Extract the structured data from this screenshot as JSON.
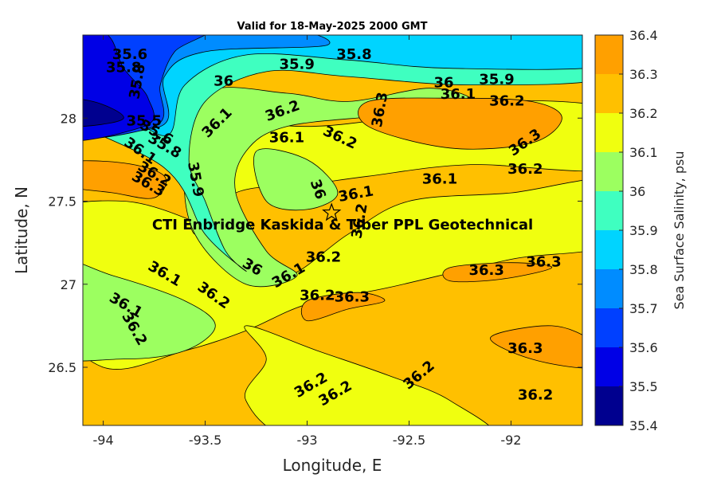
{
  "chart_data": {
    "type": "contourf",
    "title": "Valid for 18-May-2025 2000 GMT",
    "xlabel": "Longitude, E",
    "ylabel": "Latitude, N",
    "xlim": [
      -94.1,
      -91.65
    ],
    "ylim": [
      26.15,
      28.5
    ],
    "xticks": [
      -94,
      -93.5,
      -93,
      -92.5,
      -92
    ],
    "xtick_labels": [
      "-94",
      "-93.5",
      "-93",
      "-92.5",
      "-92"
    ],
    "yticks": [
      26.5,
      27,
      27.5,
      28
    ],
    "ytick_labels": [
      "26.5",
      "27",
      "27.5",
      "28"
    ],
    "grid": false,
    "colorbar": {
      "label": "Sea Surface Salinity, psu",
      "levels": [
        35.4,
        35.5,
        35.6,
        35.7,
        35.8,
        35.9,
        36.0,
        36.1,
        36.2,
        36.3,
        36.4
      ],
      "tick_labels": [
        "35.4",
        "35.5",
        "35.6",
        "35.7",
        "35.8",
        "35.9",
        "36",
        "36.1",
        "36.2",
        "36.3",
        "36.4"
      ],
      "colors": [
        "#00008f",
        "#0000e6",
        "#0040ff",
        "#008cff",
        "#00d4ff",
        "#3fffc0",
        "#9cff60",
        "#f0ff0f",
        "#ffc000",
        "#ffa000",
        "#ff5a00"
      ]
    },
    "annotation": {
      "text": "CTI Enbridge  Kaskida & Tiber PPL Geotechnical",
      "marker": "star",
      "marker_lon": -92.88,
      "marker_lat": 27.43
    },
    "contour_labels": [
      {
        "text": "35.6",
        "lon": -93.87,
        "lat": 28.38
      },
      {
        "text": "35.8",
        "lon": -93.9,
        "lat": 28.3
      },
      {
        "text": "35.8",
        "lon": -93.83,
        "lat": 28.22,
        "rot": -80
      },
      {
        "text": "35.9",
        "lon": -93.05,
        "lat": 28.32
      },
      {
        "text": "35.8",
        "lon": -92.77,
        "lat": 28.38
      },
      {
        "text": "36",
        "lon": -93.41,
        "lat": 28.22
      },
      {
        "text": "36",
        "lon": -92.33,
        "lat": 28.21
      },
      {
        "text": "35.9",
        "lon": -92.07,
        "lat": 28.23
      },
      {
        "text": "36.1",
        "lon": -92.26,
        "lat": 28.14
      },
      {
        "text": "36.2",
        "lon": -92.02,
        "lat": 28.1
      },
      {
        "text": "36.3",
        "lon": -92.64,
        "lat": 28.05,
        "rot": -80
      },
      {
        "text": "36.2",
        "lon": -93.12,
        "lat": 28.04,
        "rot": -20
      },
      {
        "text": "36.1",
        "lon": -93.44,
        "lat": 27.97,
        "rot": -45
      },
      {
        "text": "36.1",
        "lon": -93.1,
        "lat": 27.88
      },
      {
        "text": "36.2",
        "lon": -92.84,
        "lat": 27.88,
        "rot": 25
      },
      {
        "text": "36.3",
        "lon": -91.93,
        "lat": 27.85,
        "rot": -35
      },
      {
        "text": "36.2",
        "lon": -91.93,
        "lat": 27.69
      },
      {
        "text": "36.1",
        "lon": -92.35,
        "lat": 27.63
      },
      {
        "text": "35.5",
        "lon": -93.8,
        "lat": 27.98
      },
      {
        "text": "35.6",
        "lon": -93.74,
        "lat": 27.91,
        "rot": 30
      },
      {
        "text": "35.8",
        "lon": -93.7,
        "lat": 27.83,
        "rot": 30
      },
      {
        "text": "36.1",
        "lon": -93.82,
        "lat": 27.8,
        "rot": 35
      },
      {
        "text": "36.2",
        "lon": -93.75,
        "lat": 27.66,
        "rot": 30
      },
      {
        "text": "36.3",
        "lon": -93.78,
        "lat": 27.6,
        "rot": 30
      },
      {
        "text": "35.9",
        "lon": -93.55,
        "lat": 27.63,
        "rot": 80
      },
      {
        "text": "36",
        "lon": -92.95,
        "lat": 27.57,
        "rot": 70
      },
      {
        "text": "36.1",
        "lon": -92.76,
        "lat": 27.54,
        "rot": -10
      },
      {
        "text": "36.2",
        "lon": -92.74,
        "lat": 27.38,
        "rot": -80
      },
      {
        "text": "36.2",
        "lon": -92.92,
        "lat": 27.16
      },
      {
        "text": "36",
        "lon": -93.27,
        "lat": 27.1,
        "rot": 30
      },
      {
        "text": "36.1",
        "lon": -93.09,
        "lat": 27.05,
        "rot": -30
      },
      {
        "text": "36.1",
        "lon": -93.7,
        "lat": 27.06,
        "rot": 30
      },
      {
        "text": "36.2",
        "lon": -93.46,
        "lat": 26.93,
        "rot": 35
      },
      {
        "text": "36.2",
        "lon": -92.95,
        "lat": 26.93
      },
      {
        "text": "36.3",
        "lon": -92.78,
        "lat": 26.92
      },
      {
        "text": "36.3",
        "lon": -92.12,
        "lat": 27.08
      },
      {
        "text": "36.3",
        "lon": -91.84,
        "lat": 27.13
      },
      {
        "text": "36.1",
        "lon": -93.89,
        "lat": 26.87,
        "rot": 30
      },
      {
        "text": "36.2",
        "lon": -93.85,
        "lat": 26.73,
        "rot": 60
      },
      {
        "text": "36.2",
        "lon": -92.98,
        "lat": 26.39,
        "rot": -30
      },
      {
        "text": "36.2",
        "lon": -92.86,
        "lat": 26.34,
        "rot": -30
      },
      {
        "text": "36.2",
        "lon": -92.45,
        "lat": 26.45,
        "rot": -40
      },
      {
        "text": "36.3",
        "lon": -91.93,
        "lat": 26.61
      },
      {
        "text": "36.2",
        "lon": -91.88,
        "lat": 26.33
      }
    ]
  }
}
